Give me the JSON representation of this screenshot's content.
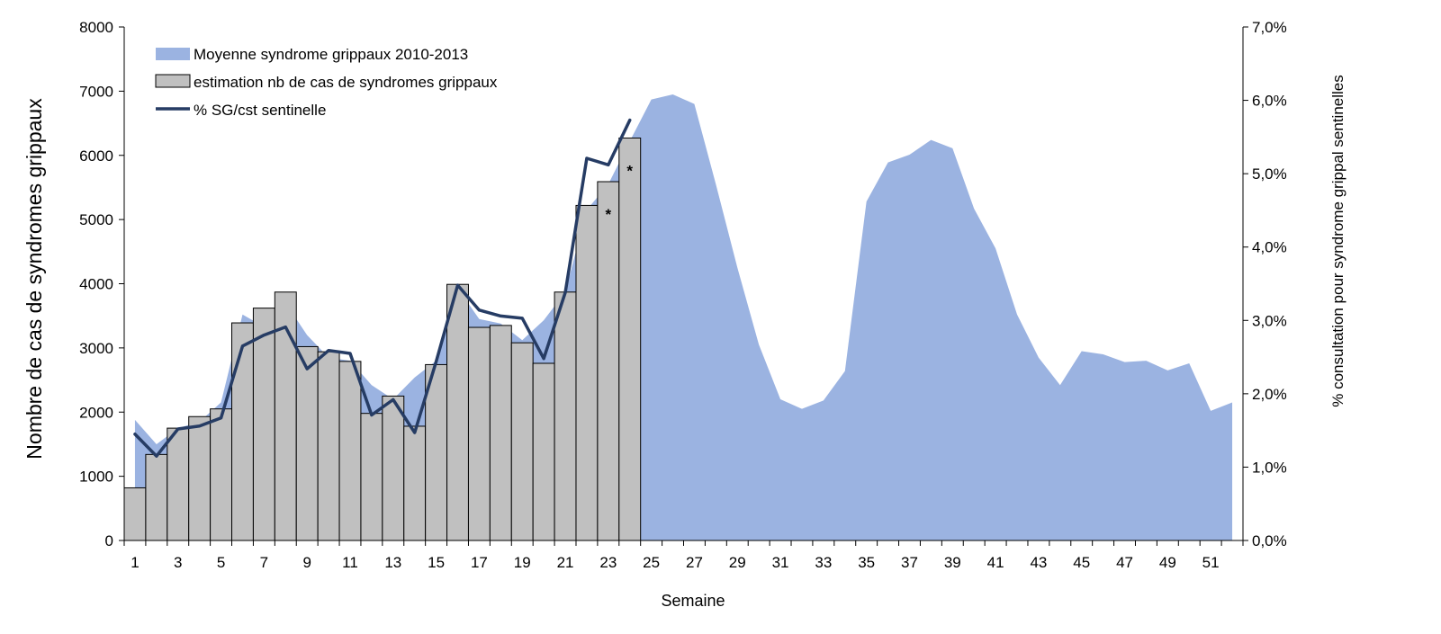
{
  "chart_data": {
    "type": "bar",
    "xlabel": "Semaine",
    "ylabel": "Nombre de cas de syndromes grippaux",
    "y2label": "% consultation pour syndrome grippal sentinelles",
    "ylim": [
      0,
      8000
    ],
    "y2lim": [
      0,
      0.07
    ],
    "y_ticks": [
      "0",
      "1000",
      "2000",
      "3000",
      "4000",
      "5000",
      "6000",
      "7000",
      "8000"
    ],
    "y2_ticks": [
      "0,0%",
      "1,0%",
      "2,0%",
      "3,0%",
      "4,0%",
      "5,0%",
      "6,0%",
      "7,0%"
    ],
    "x_ticks": [
      "1",
      "3",
      "5",
      "7",
      "9",
      "11",
      "13",
      "15",
      "17",
      "19",
      "21",
      "23",
      "25",
      "27",
      "29",
      "31",
      "33",
      "35",
      "37",
      "39",
      "41",
      "43",
      "45",
      "47",
      "49",
      "51"
    ],
    "weeks": [
      1,
      2,
      3,
      4,
      5,
      6,
      7,
      8,
      9,
      10,
      11,
      12,
      13,
      14,
      15,
      16,
      17,
      18,
      19,
      20,
      21,
      22,
      23,
      24,
      25,
      26,
      27,
      28,
      29,
      30,
      31,
      32,
      33,
      34,
      35,
      36,
      37,
      38,
      39,
      40,
      41,
      42,
      43,
      44,
      45,
      46,
      47,
      48,
      49,
      50,
      51,
      52
    ],
    "legend_position": "top-left",
    "grid": false,
    "series": [
      {
        "name": "Moyenne syndrome grippaux 2010-2013",
        "type": "area",
        "color": "#9bb3e1",
        "values": [
          1880,
          1500,
          1750,
          1850,
          2150,
          3520,
          3330,
          3700,
          3200,
          2850,
          2800,
          2420,
          2200,
          2540,
          2800,
          3930,
          3450,
          3380,
          3120,
          3430,
          3870,
          5150,
          5550,
          6220,
          6870,
          6950,
          6800,
          5550,
          4250,
          3050,
          2200,
          2050,
          2180,
          2640,
          5280,
          5890,
          6010,
          6240,
          6110,
          5170,
          4550,
          3520,
          2850,
          2420,
          2950,
          2900,
          2780,
          2800,
          2650,
          2760,
          2020,
          2150
        ]
      },
      {
        "name": "estimation nb de cas de syndromes grippaux",
        "type": "bar",
        "color": "#c0c0c0",
        "values": [
          820,
          1340,
          1750,
          1930,
          2050,
          3390,
          3620,
          3870,
          3020,
          2940,
          2790,
          1980,
          2250,
          1780,
          2740,
          3990,
          3320,
          3350,
          3080,
          2760,
          3870,
          5220,
          5590,
          6270
        ]
      },
      {
        "name": "% SG/cst sentinelle",
        "type": "line",
        "axis": "right",
        "color": "#263c64",
        "values": [
          0.0145,
          0.0115,
          0.0152,
          0.0156,
          0.0167,
          0.0265,
          0.028,
          0.0291,
          0.0234,
          0.0259,
          0.0255,
          0.0171,
          0.0192,
          0.0147,
          0.0244,
          0.0348,
          0.0314,
          0.0306,
          0.0303,
          0.0248,
          0.0338,
          0.0521,
          0.0512,
          0.0573
        ]
      }
    ],
    "annotations": [
      {
        "week": 23,
        "text": "*"
      },
      {
        "week": 24,
        "text": "*"
      }
    ]
  }
}
